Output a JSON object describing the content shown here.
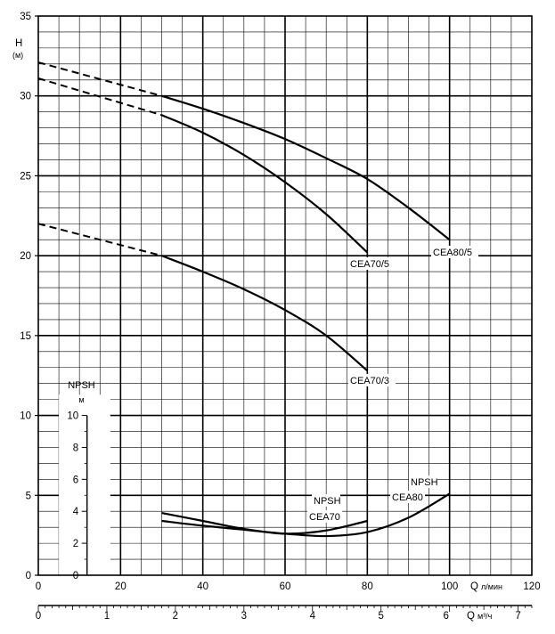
{
  "chart_data": {
    "type": "line",
    "ylabel": "H",
    "yunit": "(м)",
    "ylim": [
      0,
      35
    ],
    "yticks": [
      "0",
      "5",
      "10",
      "15",
      "20",
      "25",
      "30",
      "35"
    ],
    "x_primary": {
      "label": "Q",
      "unit": "л/мин",
      "lim": [
        0,
        120
      ],
      "ticks": [
        "0",
        "20",
        "40",
        "60",
        "80",
        "100",
        "120"
      ]
    },
    "x_secondary": {
      "label": "Q",
      "unit": "м³/ч",
      "lim": [
        0,
        7.2
      ],
      "ticks": [
        "0",
        "1",
        "2",
        "3",
        "4",
        "5",
        "6",
        "7"
      ]
    },
    "grid": true,
    "series": [
      {
        "name": "CEA80/5",
        "dashed": {
          "x": [
            0,
            30
          ],
          "y": [
            32.1,
            30.0
          ]
        },
        "solid": {
          "x": [
            30,
            40,
            50,
            60,
            70,
            80,
            90,
            100
          ],
          "y": [
            30.0,
            29.2,
            28.3,
            27.3,
            26.1,
            24.8,
            23.0,
            21.0
          ]
        }
      },
      {
        "name": "CEA70/5",
        "dashed": {
          "x": [
            0,
            30
          ],
          "y": [
            31.1,
            28.8
          ]
        },
        "solid": {
          "x": [
            30,
            40,
            50,
            60,
            70,
            80
          ],
          "y": [
            28.8,
            27.7,
            26.3,
            24.6,
            22.6,
            20.2
          ]
        }
      },
      {
        "name": "CEA70/3",
        "dashed": {
          "x": [
            0,
            30
          ],
          "y": [
            22.0,
            20.0
          ]
        },
        "solid": {
          "x": [
            30,
            40,
            50,
            60,
            70,
            80
          ],
          "y": [
            20.0,
            19.0,
            17.9,
            16.6,
            15.0,
            12.8
          ]
        }
      }
    ],
    "npsh": {
      "label": "NPSH",
      "unit": "м",
      "ylim": [
        0,
        10
      ],
      "yticks": [
        "0",
        "2",
        "4",
        "6",
        "8",
        "10"
      ],
      "series": [
        {
          "name": "CEA70",
          "label": "NPSH",
          "x": [
            30,
            40,
            50,
            60,
            70,
            80
          ],
          "y": [
            3.9,
            3.4,
            2.9,
            2.6,
            2.8,
            3.4
          ]
        },
        {
          "name": "CEA80",
          "label": "NPSH",
          "x": [
            30,
            40,
            50,
            60,
            70,
            80,
            90,
            100
          ],
          "y": [
            3.4,
            3.1,
            2.85,
            2.6,
            2.45,
            2.7,
            3.6,
            5.1
          ]
        }
      ]
    }
  }
}
